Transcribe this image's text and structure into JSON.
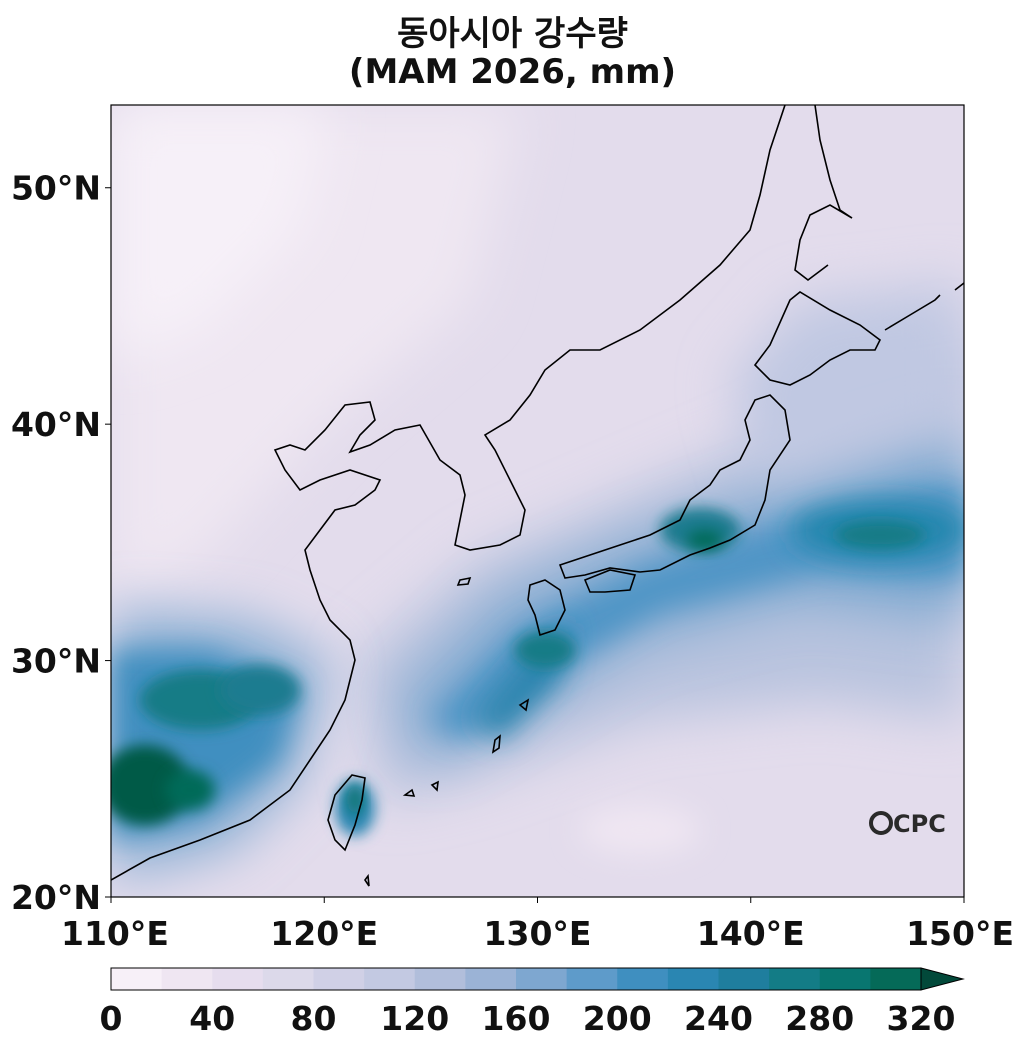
{
  "title": {
    "line1": "동아시아 강수량",
    "line2": "(MAM 2026, mm)"
  },
  "map": {
    "lon_range": [
      110,
      150
    ],
    "lat_range": [
      20,
      53.5
    ],
    "lon_ticks": [
      "110°E",
      "120°E",
      "130°E",
      "140°E",
      "150°E"
    ],
    "lat_ticks": [
      "20°N",
      "30°N",
      "40°N",
      "50°N"
    ],
    "logo_text": "CPC",
    "field": "precipitation",
    "regions_notes": "high totals over southern China, Taiwan, and a band from Okinawa across southern Japan into the Pacific; low totals over northern China / Mongolia"
  },
  "colorbar": {
    "min": 0,
    "max": 320,
    "step": 20,
    "extend": "max",
    "tick_labels": [
      "0",
      "40",
      "80",
      "120",
      "160",
      "200",
      "240",
      "280",
      "320"
    ],
    "colors": [
      "#f7f0f8",
      "#efe6f2",
      "#e6ddee",
      "#dcd9ea",
      "#d0d0e6",
      "#c3c9e2",
      "#b1bedb",
      "#9bb3d6",
      "#7ea7d0",
      "#5e9bca",
      "#3f8fc0",
      "#2a86b2",
      "#1f7e9e",
      "#137c86",
      "#087670",
      "#056a58",
      "#045a46",
      "#02493a"
    ]
  },
  "chart_data": {
    "type": "heatmap",
    "title": "동아시아 강수량",
    "subtitle": "(MAM 2026, mm)",
    "xlabel": "",
    "ylabel": "",
    "xlim": [
      110,
      150
    ],
    "ylim": [
      20,
      53.5
    ],
    "x_tick_labels": [
      "110°E",
      "120°E",
      "130°E",
      "140°E",
      "150°E"
    ],
    "y_tick_labels": [
      "20°N",
      "30°N",
      "40°N",
      "50°N"
    ],
    "colorbar_range": [
      0,
      320
    ],
    "approx_centers": [
      {
        "lon": 111,
        "lat": 24.5,
        "value": 290
      },
      {
        "lon": 114.5,
        "lat": 28.3,
        "value": 260
      },
      {
        "lon": 118,
        "lat": 28.5,
        "value": 230
      },
      {
        "lon": 121,
        "lat": 23.8,
        "value": 240
      },
      {
        "lon": 130.5,
        "lat": 30.5,
        "value": 235
      },
      {
        "lon": 138,
        "lat": 35.3,
        "value": 270
      },
      {
        "lon": 136.5,
        "lat": 36.2,
        "value": 250
      },
      {
        "lon": 145.5,
        "lat": 35.5,
        "value": 240
      }
    ]
  }
}
